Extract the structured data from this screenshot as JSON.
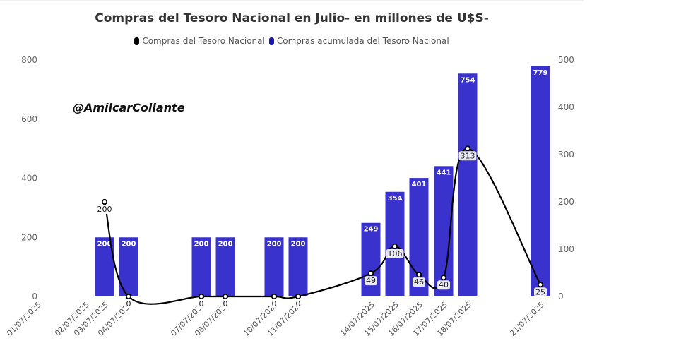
{
  "chart_data": {
    "type": "bar+line",
    "title": "Compras del Tesoro Nacional en Julio- en millones de U$S-",
    "watermark": "@AmilcarCollante",
    "categories": [
      "01/07/2025",
      "02/07/2025",
      "03/07/2025",
      "04/07/2025",
      "07/07/2025",
      "08/07/2025",
      "10/07/2025",
      "11/07/2025",
      "14/07/2025",
      "15/07/2025",
      "16/07/2025",
      "17/07/2025",
      "18/07/2025",
      "21/07/2025"
    ],
    "series": [
      {
        "name": "Compras del Tesoro Nacional",
        "kind": "line",
        "axis": "right",
        "color": "#000000",
        "values": [
          null,
          null,
          200,
          0,
          0,
          0,
          0,
          0,
          49,
          106,
          46,
          40,
          313,
          25
        ]
      },
      {
        "name": "Compras acumulada del Tesoro Nacional",
        "kind": "bar",
        "axis": "left",
        "color": "#3a32cc",
        "values": [
          null,
          null,
          200,
          200,
          200,
          200,
          200,
          200,
          249,
          354,
          401,
          441,
          754,
          779
        ]
      }
    ],
    "left_axis": {
      "ylim": [
        0,
        800
      ],
      "ticks": [
        0,
        200,
        400,
        600,
        800
      ]
    },
    "right_axis": {
      "ylim": [
        0,
        500
      ],
      "ticks": [
        0,
        100,
        200,
        300,
        400,
        500
      ]
    },
    "legend_position": "top-center",
    "grid": false
  }
}
